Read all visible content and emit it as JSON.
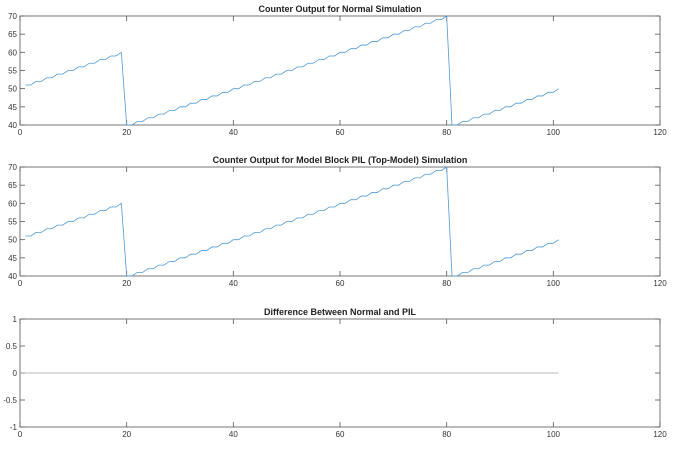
{
  "chart_data": [
    {
      "type": "line",
      "title": "Counter Output for Normal Simulation",
      "xlim": [
        0,
        120
      ],
      "ylim": [
        40,
        70
      ],
      "xticks": [
        0,
        20,
        40,
        60,
        80,
        100,
        120
      ],
      "yticks": [
        40,
        45,
        50,
        55,
        60,
        65,
        70
      ],
      "grid": false,
      "color": "#4f9ad6",
      "x_first": 1,
      "x_step": 1,
      "y": [
        51,
        51,
        52,
        52,
        53,
        53,
        54,
        54,
        55,
        55,
        56,
        56,
        57,
        57,
        58,
        58,
        59,
        59,
        60,
        40,
        40,
        41,
        41,
        42,
        42,
        43,
        43,
        44,
        44,
        45,
        45,
        46,
        46,
        47,
        47,
        48,
        48,
        49,
        49,
        50,
        50,
        51,
        51,
        52,
        52,
        53,
        53,
        54,
        54,
        55,
        55,
        56,
        56,
        57,
        57,
        58,
        58,
        59,
        59,
        60,
        60,
        61,
        61,
        62,
        62,
        63,
        63,
        64,
        64,
        65,
        65,
        66,
        66,
        67,
        67,
        68,
        68,
        69,
        69,
        70,
        40,
        40,
        41,
        41,
        42,
        42,
        43,
        43,
        44,
        44,
        45,
        45,
        46,
        46,
        47,
        47,
        48,
        48,
        49,
        49,
        50
      ]
    },
    {
      "type": "line",
      "title": "Counter Output for Model Block PIL (Top-Model) Simulation",
      "xlim": [
        0,
        120
      ],
      "ylim": [
        40,
        70
      ],
      "xticks": [
        0,
        20,
        40,
        60,
        80,
        100,
        120
      ],
      "yticks": [
        40,
        45,
        50,
        55,
        60,
        65,
        70
      ],
      "grid": false,
      "color": "#4f9ad6",
      "x_first": 1,
      "x_step": 1,
      "y": [
        51,
        51,
        52,
        52,
        53,
        53,
        54,
        54,
        55,
        55,
        56,
        56,
        57,
        57,
        58,
        58,
        59,
        59,
        60,
        40,
        40,
        41,
        41,
        42,
        42,
        43,
        43,
        44,
        44,
        45,
        45,
        46,
        46,
        47,
        47,
        48,
        48,
        49,
        49,
        50,
        50,
        51,
        51,
        52,
        52,
        53,
        53,
        54,
        54,
        55,
        55,
        56,
        56,
        57,
        57,
        58,
        58,
        59,
        59,
        60,
        60,
        61,
        61,
        62,
        62,
        63,
        63,
        64,
        64,
        65,
        65,
        66,
        66,
        67,
        67,
        68,
        68,
        69,
        69,
        70,
        40,
        40,
        41,
        41,
        42,
        42,
        43,
        43,
        44,
        44,
        45,
        45,
        46,
        46,
        47,
        47,
        48,
        48,
        49,
        49,
        50
      ]
    },
    {
      "type": "line",
      "title": "Difference Between Normal and PIL",
      "xlim": [
        0,
        120
      ],
      "ylim": [
        -1,
        1
      ],
      "xticks": [
        0,
        20,
        40,
        60,
        80,
        100,
        120
      ],
      "yticks": [
        -1,
        -0.5,
        0,
        0.5,
        1
      ],
      "grid": false,
      "color": "#a0a0a0",
      "x_first": 0,
      "x_step": 101,
      "y": [
        0,
        0
      ]
    }
  ]
}
